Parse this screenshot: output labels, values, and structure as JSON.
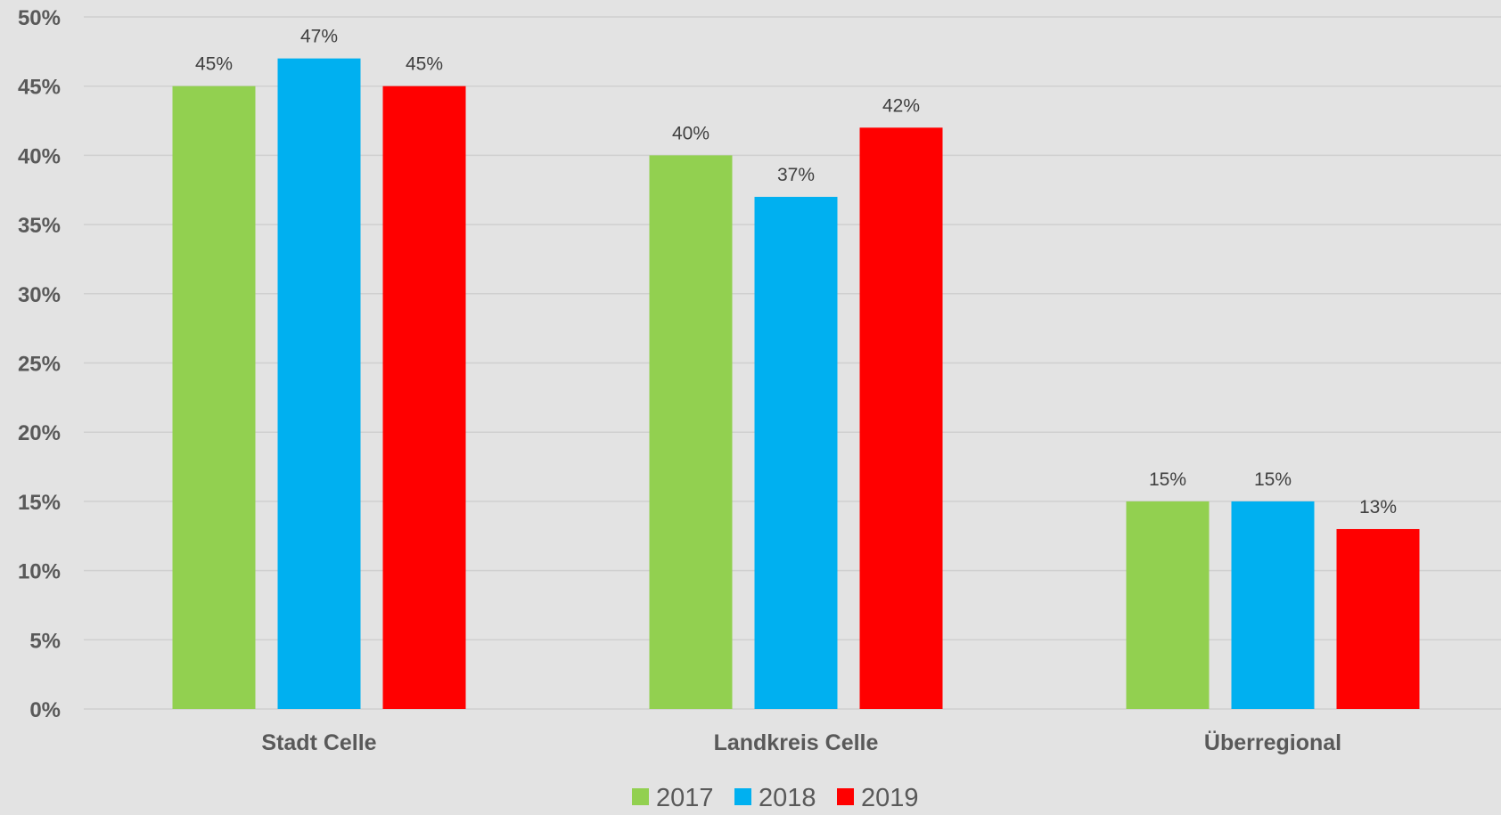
{
  "chart_data": {
    "type": "bar",
    "title": "",
    "xlabel": "",
    "ylabel": "",
    "categories": [
      "Stadt Celle",
      "Landkreis Celle",
      "Überregional"
    ],
    "series": [
      {
        "name": "2017",
        "color": "#92d050",
        "values": [
          45,
          40,
          15
        ]
      },
      {
        "name": "2018",
        "color": "#00b0f0",
        "values": [
          47,
          37,
          15
        ]
      },
      {
        "name": "2019",
        "color": "#ff0000",
        "values": [
          45,
          42,
          13
        ]
      }
    ],
    "ylim": [
      0,
      50
    ],
    "yticks": [
      0,
      5,
      10,
      15,
      20,
      25,
      30,
      35,
      40,
      45,
      50
    ],
    "ytick_labels": [
      "0%",
      "5%",
      "10%",
      "15%",
      "20%",
      "25%",
      "30%",
      "35%",
      "40%",
      "45%",
      "50%"
    ],
    "data_labels": [
      [
        "45%",
        "40%",
        "15%"
      ],
      [
        "47%",
        "37%",
        "15%"
      ],
      [
        "45%",
        "42%",
        "13%"
      ]
    ],
    "grid": true,
    "legend_position": "bottom-center",
    "background": "#e3e3e3",
    "gridline_color": "#d0d0d0"
  }
}
